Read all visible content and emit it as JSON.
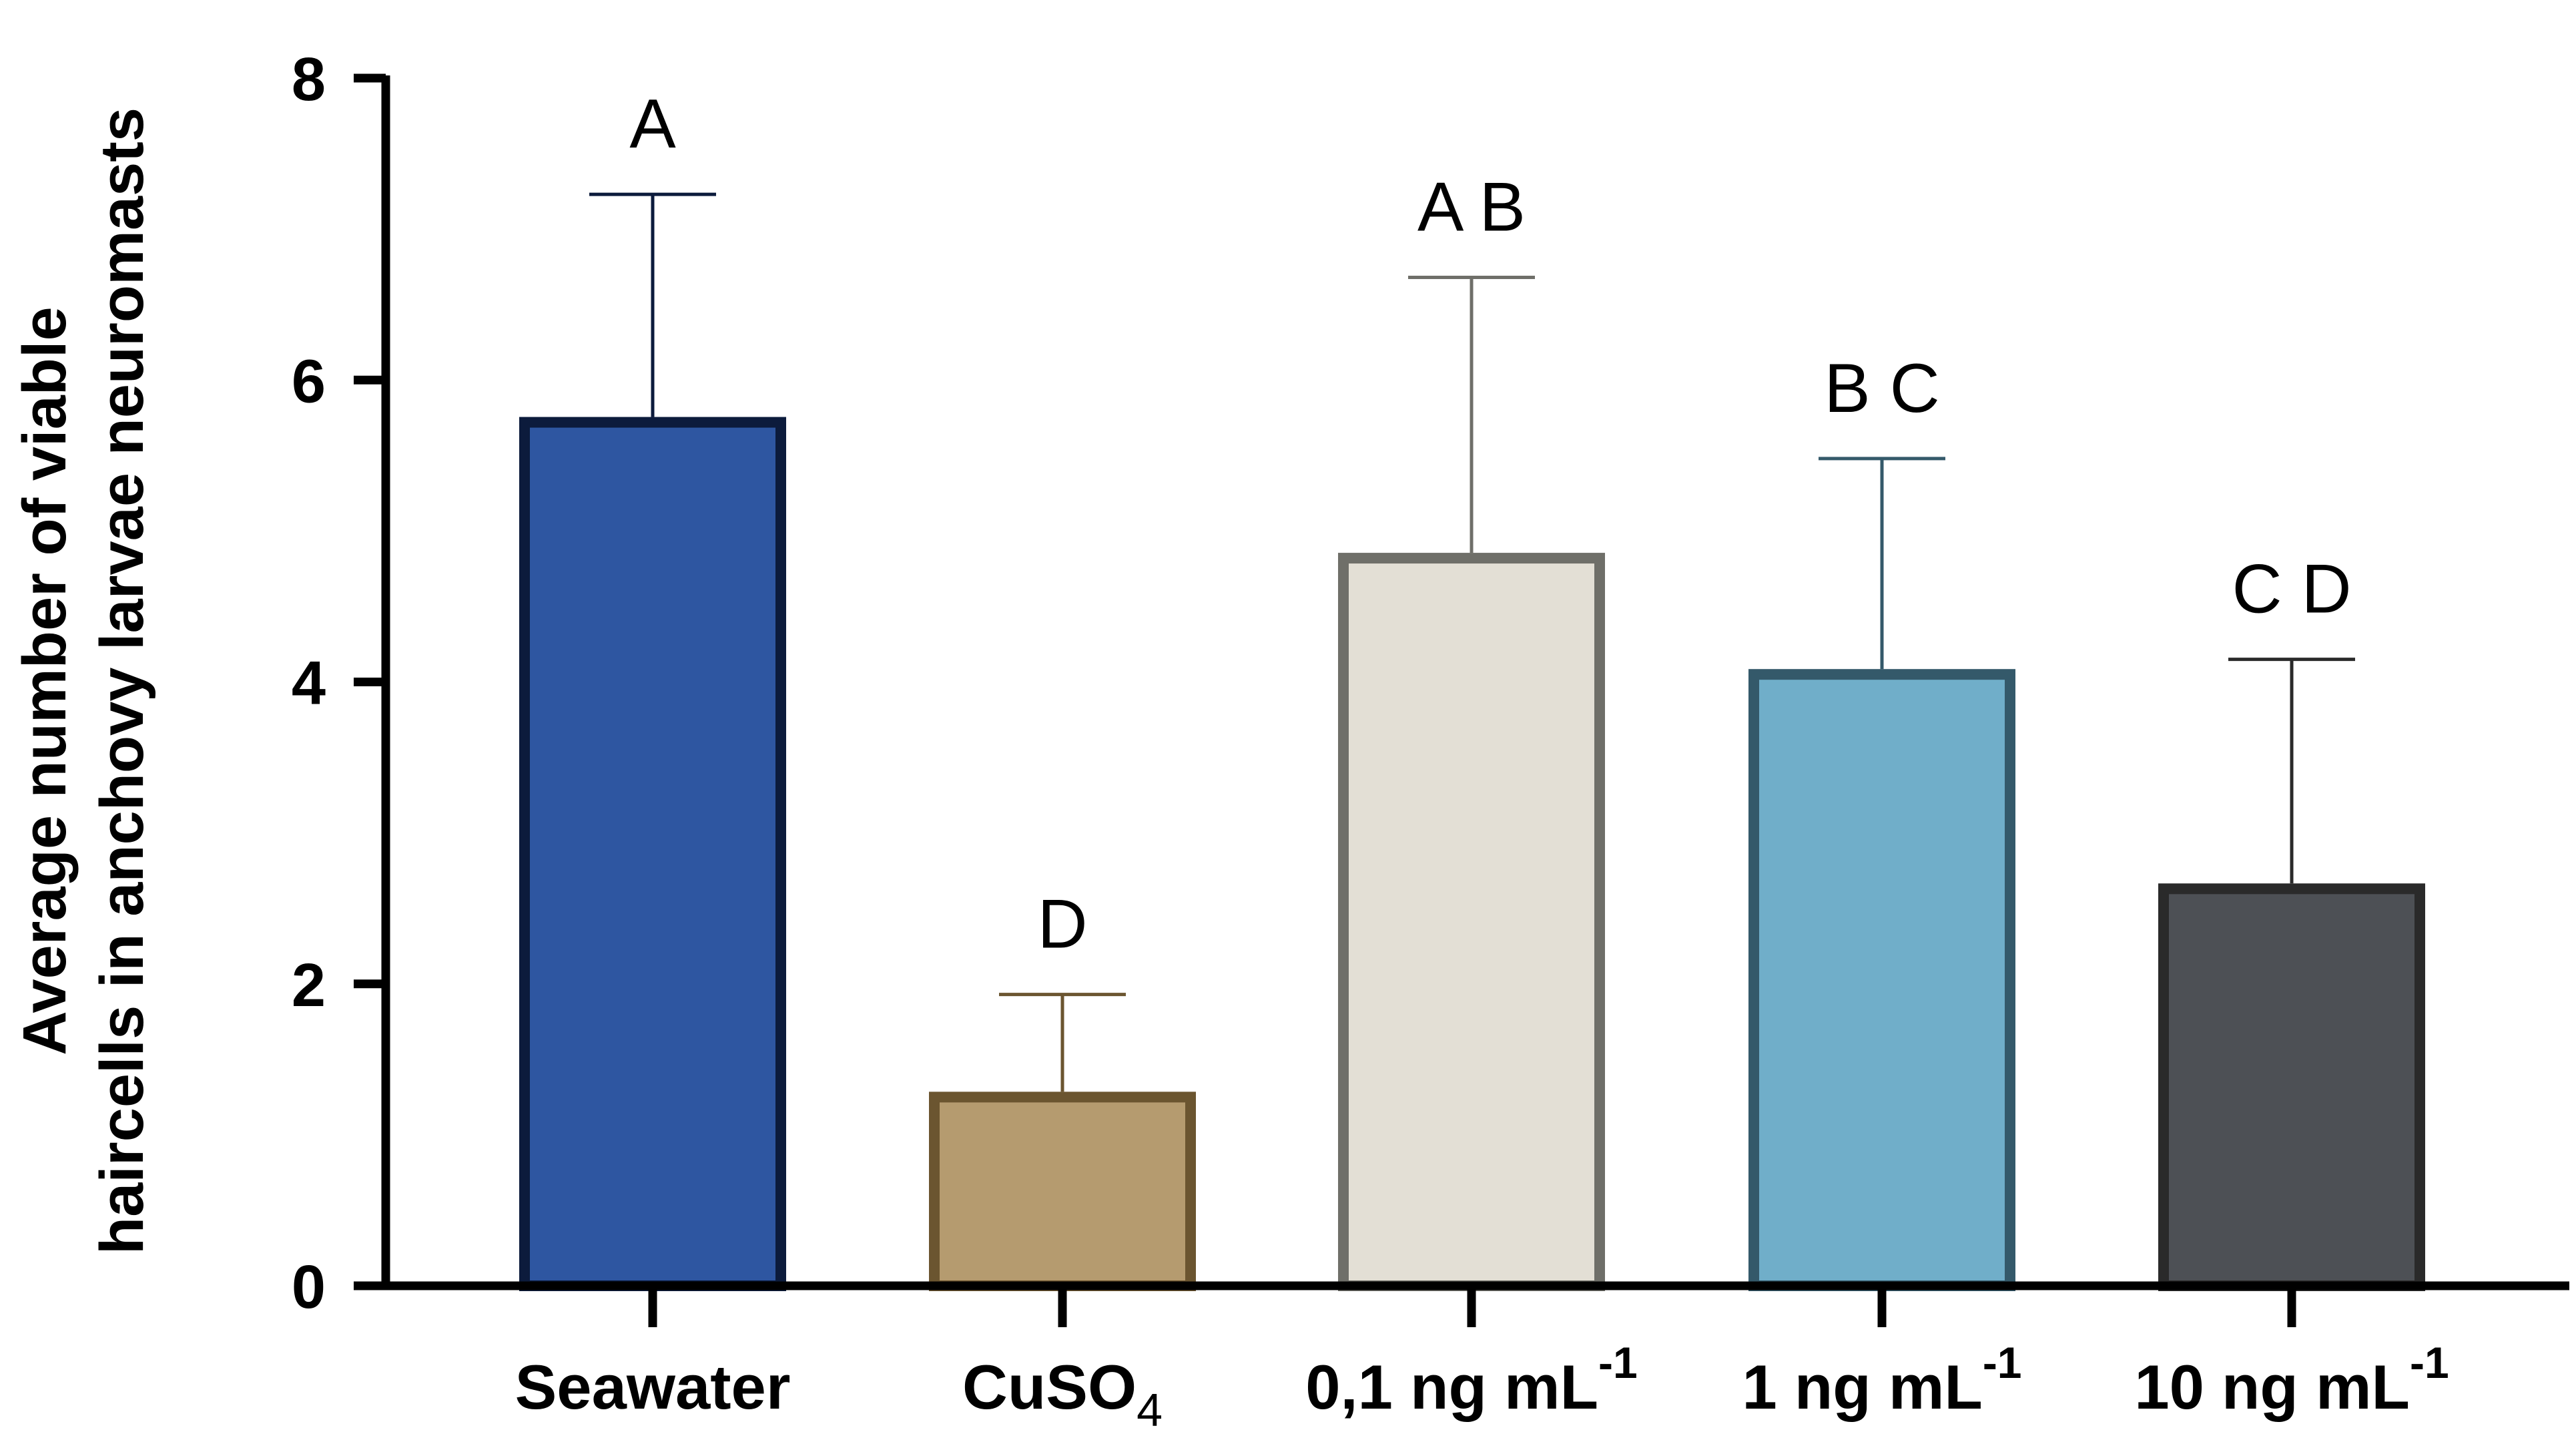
{
  "chart_data": {
    "type": "bar",
    "title": "",
    "xlabel": "",
    "ylabel_lines": [
      "Average number of viable",
      "haircells in anchovy larvae neuromasts"
    ],
    "ylim": [
      0,
      8
    ],
    "yticks": [
      "0",
      "2",
      "4",
      "6",
      "8"
    ],
    "categories": [
      {
        "base": "Seawater",
        "sub": "",
        "sup": ""
      },
      {
        "base": "CuSO",
        "sub": "4",
        "sup": ""
      },
      {
        "base": "0,1 ng mL",
        "sub": "",
        "sup": "-1"
      },
      {
        "base": "1 ng mL",
        "sub": "",
        "sup": "-1"
      },
      {
        "base": "10 ng mL",
        "sub": "",
        "sup": "-1"
      }
    ],
    "values": [
      5.72,
      1.25,
      4.82,
      4.05,
      2.63
    ],
    "errors_upper": [
      7.23,
      1.93,
      6.68,
      5.48,
      4.15
    ],
    "significance": [
      "A",
      "D",
      "A B",
      "B C",
      "C D"
    ],
    "fill_colors": [
      "#2e56a1",
      "#b59b6f",
      "#e3dfd5",
      "#70aec9",
      "#4d5055"
    ],
    "edge_colors": [
      "#0c1b3c",
      "#6b5530",
      "#6f6f69",
      "#34596a",
      "#2a2a2a"
    ]
  }
}
